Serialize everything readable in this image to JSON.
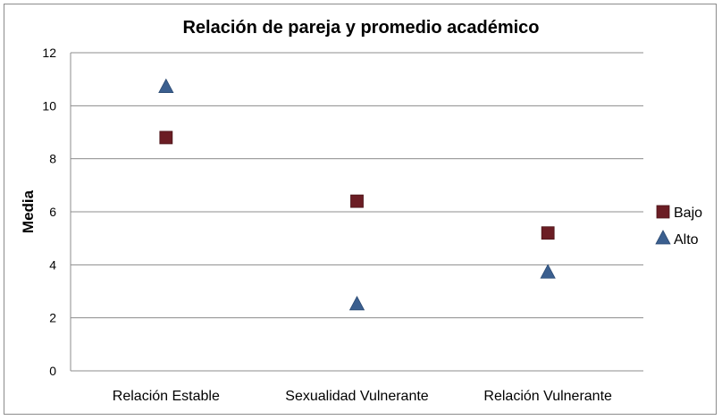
{
  "chart_data": {
    "type": "scatter",
    "title": "Relación de pareja y promedio académico",
    "xlabel": "",
    "ylabel": "Media",
    "categories": [
      "Relación Estable",
      "Sexualidad Vulnerante",
      "Relación Vulnerante"
    ],
    "ylim": [
      0,
      12
    ],
    "yticks": [
      "0",
      "2",
      "4",
      "6",
      "8",
      "10",
      "12"
    ],
    "grid": true,
    "legend_position": "right",
    "series": [
      {
        "name": "Bajo",
        "marker": "square",
        "color": "#6b1d24",
        "values": [
          8.8,
          6.4,
          5.2
        ]
      },
      {
        "name": "Alto",
        "marker": "triangle",
        "color": "#3b5f8f",
        "values": [
          10.7,
          2.5,
          3.7
        ]
      }
    ]
  }
}
